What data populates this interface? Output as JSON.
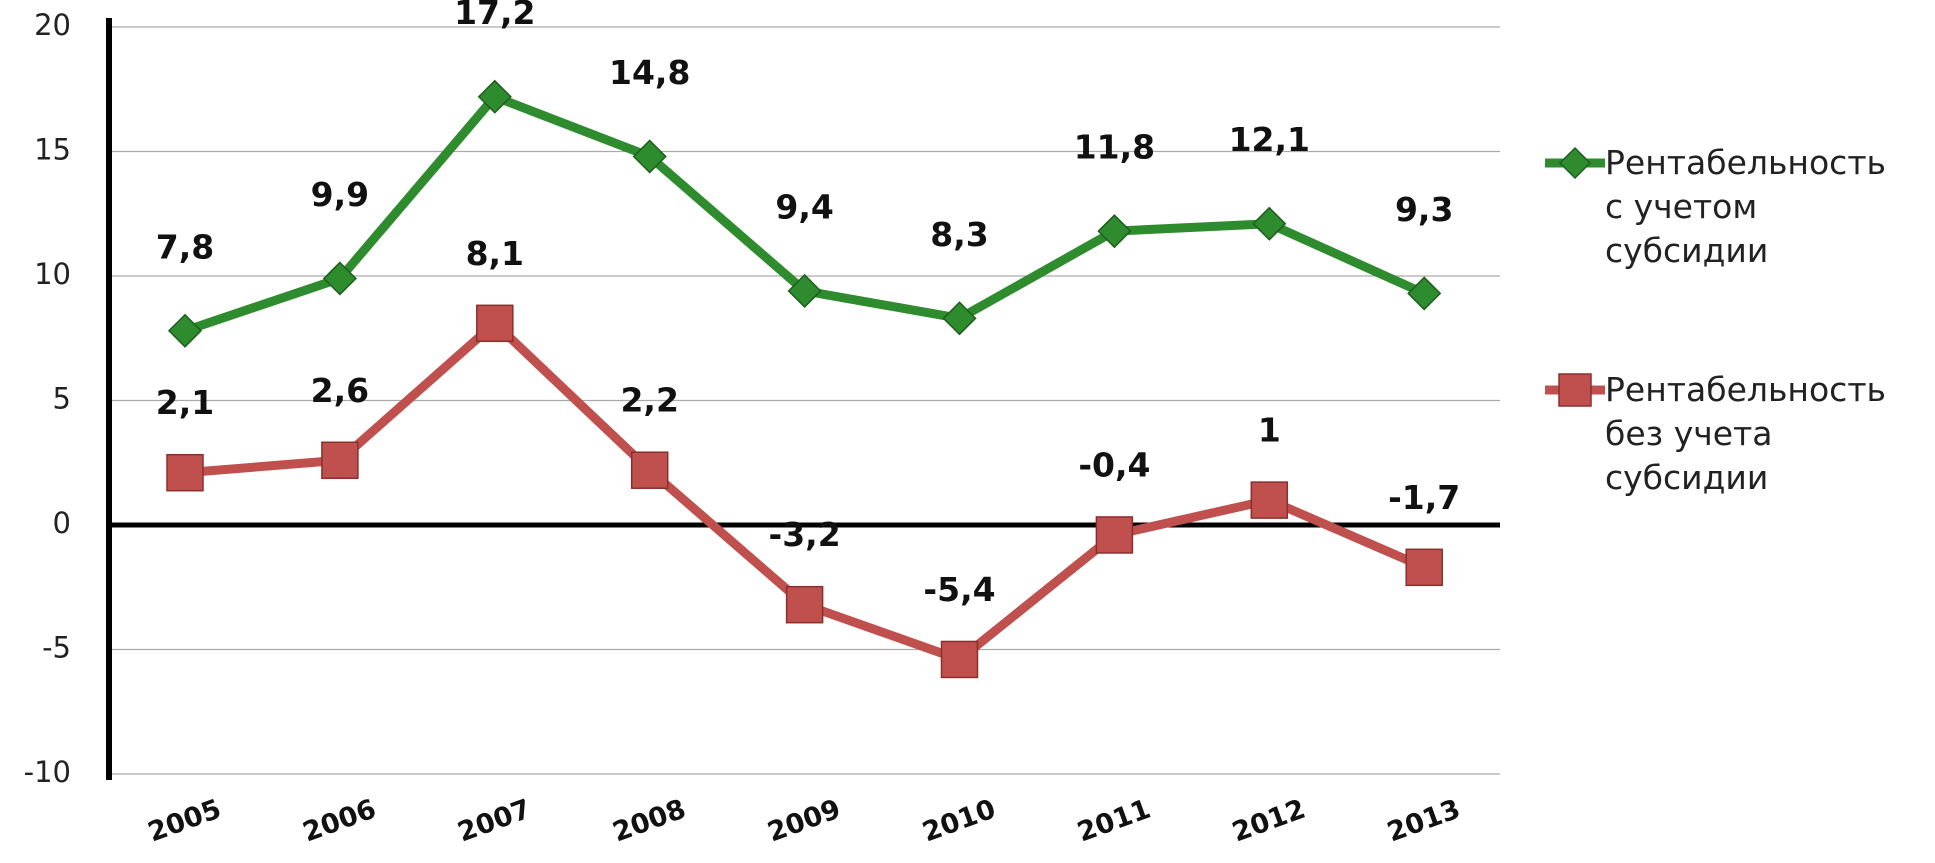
{
  "chart_data": {
    "type": "line",
    "categories": [
      "2005",
      "2006",
      "2007",
      "2008",
      "2009",
      "2010",
      "2011",
      "2012",
      "2013"
    ],
    "series": [
      {
        "name": "Рентабельность с учетом субсидии",
        "color": "#2e8b2e",
        "marker": "diamond",
        "values": [
          7.8,
          9.9,
          17.2,
          14.8,
          9.4,
          8.3,
          11.8,
          12.1,
          9.3
        ],
        "value_labels": [
          "7,8",
          "9,9",
          "17,2",
          "14,8",
          "9,4",
          "8,3",
          "11,8",
          "12,1",
          "9,3"
        ]
      },
      {
        "name": "Рентабельность без учета субсидии",
        "color": "#c0504d",
        "marker": "square",
        "values": [
          2.1,
          2.6,
          8.1,
          2.2,
          -3.2,
          -5.4,
          -0.4,
          1,
          -1.7
        ],
        "value_labels": [
          "2,1",
          "2,6",
          "8,1",
          "2,2",
          "-3,2",
          "-5,4",
          "-0,4",
          "1",
          "-1,7"
        ]
      }
    ],
    "ylim": [
      -10,
      20
    ],
    "yticks": [
      -10,
      -5,
      0,
      5,
      10,
      15,
      20
    ],
    "grid": true,
    "legend": "right"
  }
}
